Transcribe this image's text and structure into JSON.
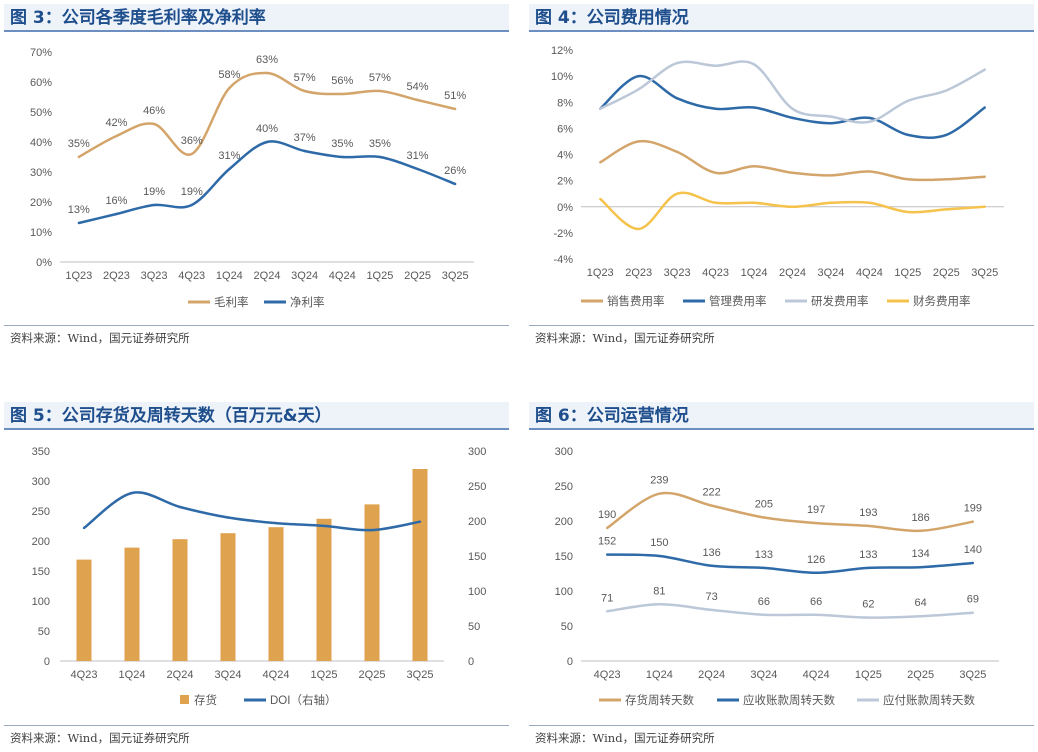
{
  "colors": {
    "gold": "#D4A56A",
    "blue": "#2E6AA8",
    "silver": "#BCC8D8",
    "yellow": "#F5C24C",
    "bar": "#DFA24E",
    "axis": "#BFBFBF",
    "text": "#595959"
  },
  "panels": [
    {
      "title": "图 3：公司各季度毛利率及净利率",
      "source": "资料来源：Wind，国元证券研究所",
      "chart_data": {
        "type": "line",
        "categories": [
          "1Q23",
          "2Q23",
          "3Q23",
          "4Q23",
          "1Q24",
          "2Q24",
          "3Q24",
          "4Q24",
          "1Q25",
          "2Q25",
          "3Q25"
        ],
        "yticks": [
          "0%",
          "10%",
          "20%",
          "30%",
          "40%",
          "50%",
          "60%",
          "70%"
        ],
        "ylim": [
          0,
          70
        ],
        "series": [
          {
            "name": "毛利率",
            "color": "#D4A56A",
            "values": [
              35,
              42,
              46,
              36,
              58,
              63,
              57,
              56,
              57,
              54,
              51
            ],
            "labels": [
              "35%",
              "42%",
              "46%",
              "36%",
              "58%",
              "63%",
              "57%",
              "56%",
              "57%",
              "54%",
              "51%"
            ]
          },
          {
            "name": "净利率",
            "color": "#2E6AA8",
            "values": [
              13,
              16,
              19,
              19,
              31,
              40,
              37,
              35,
              35,
              31,
              26
            ],
            "labels": [
              "13%",
              "16%",
              "19%",
              "19%",
              "31%",
              "40%",
              "37%",
              "35%",
              "35%",
              "31%",
              "26%"
            ]
          }
        ]
      }
    },
    {
      "title": "图 4：公司费用情况",
      "source": "资料来源：Wind，国元证券研究所",
      "chart_data": {
        "type": "line",
        "categories": [
          "1Q23",
          "2Q23",
          "3Q23",
          "4Q23",
          "1Q24",
          "2Q24",
          "3Q24",
          "4Q24",
          "1Q25",
          "2Q25",
          "3Q25"
        ],
        "yticks": [
          "-4%",
          "-2%",
          "0%",
          "2%",
          "4%",
          "6%",
          "8%",
          "10%",
          "12%"
        ],
        "ylim": [
          -4,
          12
        ],
        "series": [
          {
            "name": "销售费用率",
            "color": "#D4A56A",
            "values": [
              3.4,
              5.0,
              4.2,
              2.6,
              3.1,
              2.6,
              2.4,
              2.7,
              2.1,
              2.1,
              2.3
            ]
          },
          {
            "name": "管理费用率",
            "color": "#2E6AA8",
            "values": [
              7.5,
              10.0,
              8.3,
              7.5,
              7.6,
              6.8,
              6.4,
              6.8,
              5.5,
              5.5,
              7.6
            ]
          },
          {
            "name": "研发费用率",
            "color": "#BCC8D8",
            "values": [
              7.5,
              9.0,
              11.0,
              10.8,
              10.9,
              7.5,
              6.9,
              6.5,
              8.1,
              8.9,
              10.5
            ]
          },
          {
            "name": "财务费用率",
            "color": "#F5C24C",
            "values": [
              0.6,
              -1.7,
              1.0,
              0.3,
              0.3,
              0.0,
              0.3,
              0.3,
              -0.4,
              -0.2,
              0.0
            ]
          }
        ]
      }
    },
    {
      "title": "图 5：公司存货及周转天数（百万元&天）",
      "source": "资料来源：Wind，国元证券研究所",
      "chart_data": {
        "type": "bar+line",
        "categories": [
          "4Q23",
          "1Q24",
          "2Q24",
          "3Q24",
          "4Q24",
          "1Q25",
          "2Q25",
          "3Q25"
        ],
        "yticks_left": [
          "0",
          "50",
          "100",
          "150",
          "200",
          "250",
          "300",
          "350"
        ],
        "ylim_left": [
          0,
          350
        ],
        "yticks_right": [
          "0",
          "50",
          "100",
          "150",
          "200",
          "250",
          "300"
        ],
        "ylim_right": [
          0,
          300
        ],
        "bar_series": {
          "name": "存货",
          "color": "#DFA24E",
          "values": [
            169,
            189,
            203,
            213,
            223,
            237,
            261,
            320
          ]
        },
        "line_series": {
          "name": "DOI（右轴）",
          "color": "#2E6AA8",
          "values": [
            190,
            240,
            220,
            205,
            197,
            193,
            187,
            199
          ]
        }
      }
    },
    {
      "title": "图 6：公司运营情况",
      "source": "资料来源：Wind，国元证券研究所",
      "chart_data": {
        "type": "line",
        "categories": [
          "4Q23",
          "1Q24",
          "2Q24",
          "3Q24",
          "4Q24",
          "1Q25",
          "2Q25",
          "3Q25"
        ],
        "yticks": [
          "0",
          "50",
          "100",
          "150",
          "200",
          "250",
          "300"
        ],
        "ylim": [
          0,
          300
        ],
        "series": [
          {
            "name": "存货周转天数",
            "color": "#D4A56A",
            "values": [
              190,
              239,
              222,
              205,
              197,
              193,
              186,
              199
            ],
            "labels": [
              "190",
              "239",
              "222",
              "205",
              "197",
              "193",
              "186",
              "199"
            ]
          },
          {
            "name": "应收账款周转天数",
            "color": "#2E6AA8",
            "values": [
              152,
              150,
              136,
              133,
              126,
              133,
              134,
              140
            ],
            "labels": [
              "152",
              "150",
              "136",
              "133",
              "126",
              "133",
              "134",
              "140"
            ]
          },
          {
            "name": "应付账款周转天数",
            "color": "#BCC8D8",
            "values": [
              71,
              81,
              73,
              66,
              66,
              62,
              64,
              69
            ],
            "labels": [
              "71",
              "81",
              "73",
              "66",
              "66",
              "62",
              "64",
              "69"
            ]
          }
        ]
      }
    }
  ]
}
